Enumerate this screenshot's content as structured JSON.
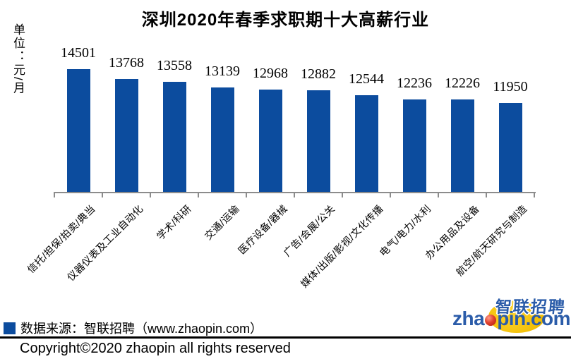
{
  "chart_data": {
    "type": "bar",
    "title": "深圳2020年春季求职期十大高薪行业",
    "ylabel": "单位：元/月",
    "categories": [
      "信托/担保/拍卖/典当",
      "仪器仪表及工业自动化",
      "学术/科研",
      "交通/运输",
      "医疗设备/器械",
      "广告/会展/公关",
      "媒体/出版/影视/文化传播",
      "电气/电力/水利",
      "办公用品及设备",
      "航空/航天研究与制造"
    ],
    "values": [
      14501,
      13768,
      13558,
      13139,
      12968,
      12882,
      12544,
      12236,
      12226,
      11950
    ],
    "bar_color": "#0C4C9E",
    "axis_color": "#8C8C8C",
    "data_labels": "on",
    "grid": "off",
    "legend_position": "bottom-left"
  },
  "legend": {
    "marker_color": "#0C4C9E",
    "text": "数据来源：智联招聘（www.zhaopin.com）"
  },
  "footer": {
    "copyright": "Copyright©2020 zhaopin all rights reserved"
  },
  "logo": {
    "cn_text": "智联招聘",
    "en_text_pre": "zha",
    "en_text_post": "pin.com",
    "blue": "#2B5CA9",
    "yellow": "#F2BF06",
    "red": "#C4271F"
  }
}
